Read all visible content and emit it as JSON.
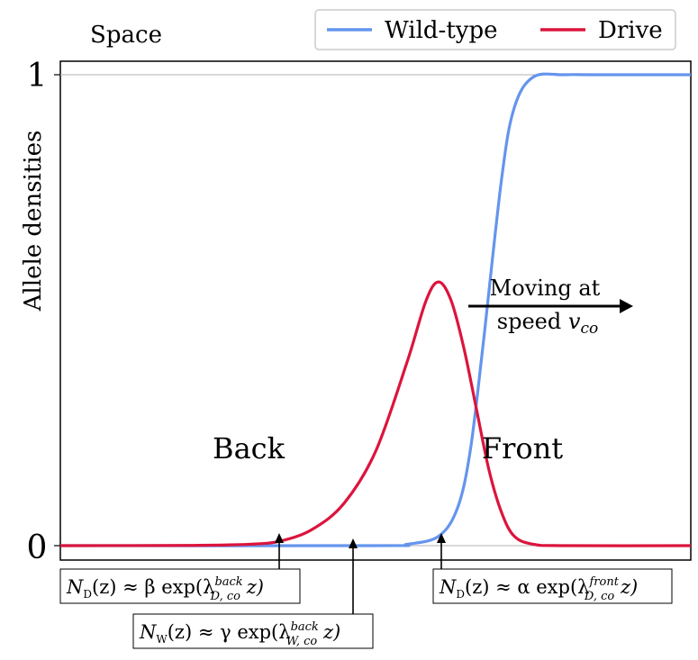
{
  "chart_data": {
    "type": "line",
    "x_label": "Space",
    "y_label": "Allele densities",
    "y_ticks": [
      "0",
      "1"
    ],
    "ylim": [
      0,
      1
    ],
    "grid": "horizontal lines at 0 and 1",
    "legend_position": "top-right",
    "series": [
      {
        "name": "Wild-type",
        "color": "#6495ED",
        "shape": "sigmoid rising from 0 to 1",
        "x": [
          0,
          0.5,
          0.55,
          0.6,
          0.63,
          0.65,
          0.67,
          0.7,
          0.72,
          0.75,
          0.8,
          0.85,
          1.0
        ],
        "values": [
          0.0,
          0.0,
          0.003,
          0.02,
          0.08,
          0.2,
          0.42,
          0.78,
          0.93,
          0.995,
          1.0,
          1.0,
          1.0
        ]
      },
      {
        "name": "Drive",
        "color": "#DC143C",
        "shape": "pulse peaking near the front",
        "x": [
          0,
          0.2,
          0.3,
          0.35,
          0.4,
          0.45,
          0.5,
          0.55,
          0.58,
          0.6,
          0.62,
          0.64,
          0.66,
          0.68,
          0.7,
          0.72,
          0.75,
          0.8,
          1.0
        ],
        "values": [
          0.0,
          0.0005,
          0.003,
          0.01,
          0.035,
          0.09,
          0.2,
          0.39,
          0.52,
          0.56,
          0.52,
          0.42,
          0.29,
          0.16,
          0.07,
          0.02,
          0.003,
          0.0,
          0.0
        ]
      }
    ],
    "annotations": {
      "direction": {
        "line1": "Moving at",
        "line2_prefix": "speed ",
        "line2_math": "v",
        "line2_sub": "co"
      },
      "back_label": "Back",
      "front_label": "Front",
      "boxes": [
        {
          "id": "nd_back",
          "lhs": "N",
          "lhs_sub": "D",
          "approx": "(z) ≈ β exp(λ",
          "lam_sub": "D, co",
          "lam_sup": "back",
          "tail": " z)"
        },
        {
          "id": "nw_back",
          "lhs": "N",
          "lhs_sub": "W",
          "approx": "(z) ≈ γ exp(λ",
          "lam_sub": "W, co",
          "lam_sup": "back",
          "tail": " z)"
        },
        {
          "id": "nd_front",
          "lhs": "N",
          "lhs_sub": "D",
          "approx": "(z) ≈ α exp(λ",
          "lam_sub": "D, co",
          "lam_sup": "front",
          "tail": " z)"
        }
      ]
    }
  }
}
